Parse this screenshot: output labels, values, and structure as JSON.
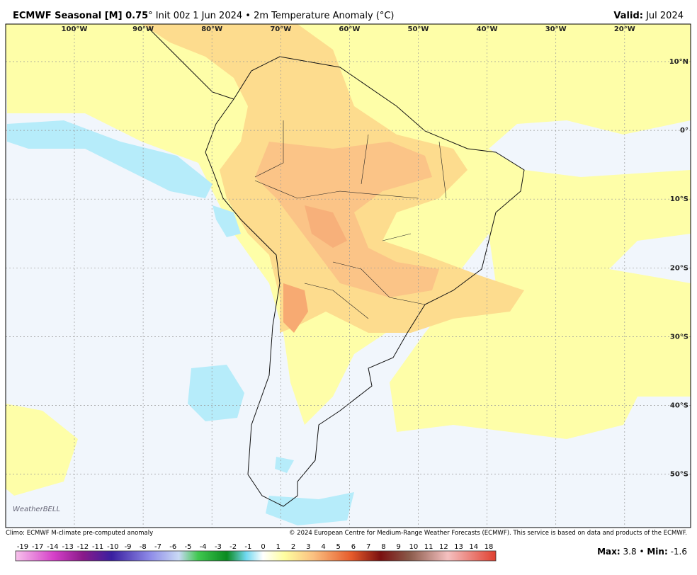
{
  "header": {
    "title_bold": "ECMWF Seasonal [M] 0.75",
    "title_rest": "° Init 00z 1 Jun 2024 • 2m Temperature Anomaly (°C)",
    "valid_label": "Valid:",
    "valid_value": "Jul 2024"
  },
  "map": {
    "lon_labels": [
      "100°W",
      "90°W",
      "80°W",
      "70°W",
      "60°W",
      "50°W",
      "40°W",
      "30°W",
      "20°W"
    ],
    "lat_labels": [
      "10°N",
      "0°",
      "10°S",
      "20°S",
      "30°S",
      "40°S",
      "50°S"
    ],
    "logo": "WeatherBELL"
  },
  "footer": {
    "climo": "Climo: ECMWF M-climate pre-computed anomaly",
    "copyright": "© 2024 European Centre for Medium-Range Weather Forecasts (ECMWF). This service is based on data and products of the ECMWF."
  },
  "colorbar": {
    "labels": [
      -19,
      -17,
      -14,
      -13,
      -12,
      -11,
      -10,
      -9,
      -8,
      -7,
      -6,
      -5,
      -4,
      -3,
      -2,
      -1,
      0,
      1,
      2,
      3,
      4,
      5,
      6,
      7,
      8,
      9,
      10,
      11,
      12,
      13,
      14,
      18
    ]
  },
  "stats": {
    "max_label": "Max:",
    "max": 3.8,
    "sep": "•",
    "min_label": "Min:",
    "min": -1.6
  }
}
